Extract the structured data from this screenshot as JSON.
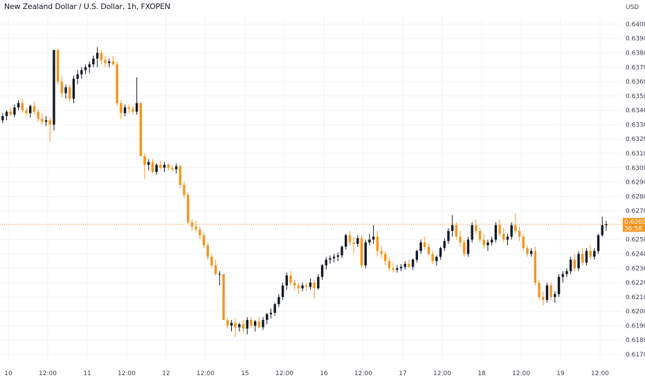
{
  "chart_data": {
    "type": "candlestick",
    "title": "New Zealand Dollar / U.S. Dollar, 1h, FXOPEN",
    "y_unit": "USD",
    "ylim": [
      0.6165,
      0.6403
    ],
    "y_ticks": [
      "0.64000",
      "0.63900",
      "0.63800",
      "0.63700",
      "0.63600",
      "0.63500",
      "0.63400",
      "0.63300",
      "0.63200",
      "0.63100",
      "0.63000",
      "0.62900",
      "0.62800",
      "0.62700",
      "0.62600",
      "0.62500",
      "0.62400",
      "0.62300",
      "0.62200",
      "0.62100",
      "0.62000",
      "0.61900",
      "0.61800",
      "0.61700"
    ],
    "x_ticks": [
      "10",
      "12:00",
      "11",
      "12:00",
      "12",
      "12:00",
      "15",
      "12:00",
      "16",
      "12:00",
      "17",
      "12:00",
      "18",
      "12:00",
      "19",
      "12:00"
    ],
    "current_price": "0.62607",
    "countdown": "36:58",
    "colors": {
      "up": "#131722",
      "down": "#f7931a",
      "grid": "#f0f3fa",
      "price_line": "#f7931a"
    },
    "candles": [
      [
        0.6333,
        0.6338,
        0.6331,
        0.6336
      ],
      [
        0.6336,
        0.634,
        0.6333,
        0.6339
      ],
      [
        0.6339,
        0.6342,
        0.6336,
        0.6337
      ],
      [
        0.6337,
        0.6344,
        0.6335,
        0.6342
      ],
      [
        0.6342,
        0.6347,
        0.634,
        0.6345
      ],
      [
        0.6345,
        0.6348,
        0.6338,
        0.634
      ],
      [
        0.634,
        0.6342,
        0.6336,
        0.6338
      ],
      [
        0.6338,
        0.6344,
        0.6335,
        0.6343
      ],
      [
        0.6343,
        0.6346,
        0.6337,
        0.6339
      ],
      [
        0.6339,
        0.6341,
        0.6332,
        0.6334
      ],
      [
        0.6334,
        0.6338,
        0.633,
        0.6332
      ],
      [
        0.6332,
        0.6336,
        0.6329,
        0.6333
      ],
      [
        0.6333,
        0.6335,
        0.6318,
        0.633
      ],
      [
        0.633,
        0.6382,
        0.6326,
        0.6382
      ],
      [
        0.6382,
        0.6383,
        0.6358,
        0.636
      ],
      [
        0.636,
        0.6364,
        0.6349,
        0.6352
      ],
      [
        0.6352,
        0.6358,
        0.6348,
        0.6356
      ],
      [
        0.6356,
        0.6358,
        0.6346,
        0.6348
      ],
      [
        0.6348,
        0.6364,
        0.6345,
        0.6362
      ],
      [
        0.6362,
        0.6368,
        0.6358,
        0.6365
      ],
      [
        0.6365,
        0.637,
        0.6362,
        0.6368
      ],
      [
        0.6368,
        0.6372,
        0.6365,
        0.637
      ],
      [
        0.637,
        0.6374,
        0.6366,
        0.6372
      ],
      [
        0.6372,
        0.6378,
        0.637,
        0.6376
      ],
      [
        0.6376,
        0.6384,
        0.637,
        0.638
      ],
      [
        0.638,
        0.6382,
        0.6372,
        0.6375
      ],
      [
        0.6375,
        0.6378,
        0.637,
        0.6373
      ],
      [
        0.6373,
        0.6376,
        0.637,
        0.6374
      ],
      [
        0.6374,
        0.6378,
        0.6371,
        0.6372
      ],
      [
        0.6372,
        0.6374,
        0.6343,
        0.6345
      ],
      [
        0.6345,
        0.6347,
        0.6334,
        0.6338
      ],
      [
        0.6338,
        0.6344,
        0.6336,
        0.6342
      ],
      [
        0.6342,
        0.6344,
        0.6338,
        0.6341
      ],
      [
        0.6341,
        0.6343,
        0.6337,
        0.6339
      ],
      [
        0.6339,
        0.6363,
        0.6337,
        0.6345
      ],
      [
        0.6345,
        0.6346,
        0.6308,
        0.6308
      ],
      [
        0.6308,
        0.631,
        0.6292,
        0.6302
      ],
      [
        0.6302,
        0.6306,
        0.6298,
        0.6304
      ],
      [
        0.6304,
        0.6306,
        0.6296,
        0.6297
      ],
      [
        0.6297,
        0.6303,
        0.6295,
        0.6302
      ],
      [
        0.6302,
        0.6305,
        0.6299,
        0.63
      ],
      [
        0.63,
        0.6304,
        0.6297,
        0.6302
      ],
      [
        0.6302,
        0.6303,
        0.6298,
        0.63
      ],
      [
        0.63,
        0.6302,
        0.6297,
        0.6299
      ],
      [
        0.6299,
        0.6303,
        0.6296,
        0.6301
      ],
      [
        0.6301,
        0.6302,
        0.6286,
        0.6288
      ],
      [
        0.6288,
        0.629,
        0.6279,
        0.6281
      ],
      [
        0.6281,
        0.6283,
        0.6261,
        0.6262
      ],
      [
        0.6262,
        0.6264,
        0.6256,
        0.6259
      ],
      [
        0.6259,
        0.6263,
        0.6255,
        0.6257
      ],
      [
        0.6257,
        0.6259,
        0.625,
        0.6253
      ],
      [
        0.6253,
        0.6255,
        0.6244,
        0.6246
      ],
      [
        0.6246,
        0.6248,
        0.6236,
        0.6238
      ],
      [
        0.6238,
        0.624,
        0.623,
        0.6232
      ],
      [
        0.6232,
        0.6236,
        0.6225,
        0.6226
      ],
      [
        0.6226,
        0.6228,
        0.6218,
        0.6226
      ],
      [
        0.6226,
        0.6226,
        0.6194,
        0.6194
      ],
      [
        0.6194,
        0.6196,
        0.6188,
        0.619
      ],
      [
        0.619,
        0.6194,
        0.6186,
        0.6192
      ],
      [
        0.6192,
        0.6195,
        0.6182,
        0.6189
      ],
      [
        0.6189,
        0.6192,
        0.6186,
        0.6191
      ],
      [
        0.6191,
        0.6194,
        0.6185,
        0.6188
      ],
      [
        0.6188,
        0.6196,
        0.6184,
        0.6194
      ],
      [
        0.6194,
        0.6196,
        0.6188,
        0.619
      ],
      [
        0.619,
        0.6194,
        0.6186,
        0.6193
      ],
      [
        0.6193,
        0.6196,
        0.6188,
        0.6189
      ],
      [
        0.6189,
        0.6196,
        0.6187,
        0.6194
      ],
      [
        0.6194,
        0.6199,
        0.6191,
        0.6198
      ],
      [
        0.6198,
        0.6202,
        0.6195,
        0.6199
      ],
      [
        0.6199,
        0.6206,
        0.6197,
        0.6205
      ],
      [
        0.6205,
        0.6212,
        0.6203,
        0.621
      ],
      [
        0.621,
        0.622,
        0.6208,
        0.6218
      ],
      [
        0.6218,
        0.6227,
        0.6215,
        0.6225
      ],
      [
        0.6225,
        0.6228,
        0.6218,
        0.622
      ],
      [
        0.622,
        0.6222,
        0.6215,
        0.6218
      ],
      [
        0.6218,
        0.622,
        0.6212,
        0.6216
      ],
      [
        0.6216,
        0.622,
        0.6214,
        0.6218
      ],
      [
        0.6218,
        0.622,
        0.6214,
        0.6217
      ],
      [
        0.6217,
        0.6223,
        0.6215,
        0.622
      ],
      [
        0.622,
        0.6222,
        0.6209,
        0.6216
      ],
      [
        0.6216,
        0.6226,
        0.6215,
        0.6224
      ],
      [
        0.6224,
        0.6233,
        0.6222,
        0.6232
      ],
      [
        0.6232,
        0.6238,
        0.6229,
        0.6236
      ],
      [
        0.6236,
        0.6239,
        0.6233,
        0.6237
      ],
      [
        0.6237,
        0.624,
        0.6234,
        0.6238
      ],
      [
        0.6238,
        0.6241,
        0.6235,
        0.6239
      ],
      [
        0.6239,
        0.6246,
        0.6237,
        0.6245
      ],
      [
        0.6245,
        0.6254,
        0.6243,
        0.6253
      ],
      [
        0.6253,
        0.6256,
        0.6246,
        0.6248
      ],
      [
        0.6248,
        0.6252,
        0.624,
        0.6247
      ],
      [
        0.6247,
        0.6253,
        0.6245,
        0.6251
      ],
      [
        0.6251,
        0.6253,
        0.623,
        0.6232
      ],
      [
        0.6232,
        0.625,
        0.623,
        0.6248
      ],
      [
        0.6248,
        0.6254,
        0.6246,
        0.625
      ],
      [
        0.625,
        0.626,
        0.6247,
        0.6252
      ],
      [
        0.6252,
        0.6256,
        0.6238,
        0.6242
      ],
      [
        0.6242,
        0.6246,
        0.6237,
        0.624
      ],
      [
        0.624,
        0.6242,
        0.6232,
        0.6235
      ],
      [
        0.6235,
        0.6237,
        0.6228,
        0.623
      ],
      [
        0.623,
        0.6234,
        0.6227,
        0.6229
      ],
      [
        0.6229,
        0.6232,
        0.6227,
        0.623
      ],
      [
        0.623,
        0.6233,
        0.6228,
        0.6231
      ],
      [
        0.6231,
        0.6235,
        0.6229,
        0.6233
      ],
      [
        0.6233,
        0.6236,
        0.623,
        0.6231
      ],
      [
        0.6231,
        0.6237,
        0.6229,
        0.6236
      ],
      [
        0.6236,
        0.6243,
        0.6234,
        0.6242
      ],
      [
        0.6242,
        0.625,
        0.624,
        0.6248
      ],
      [
        0.6248,
        0.6252,
        0.6243,
        0.6245
      ],
      [
        0.6245,
        0.6247,
        0.6239,
        0.624
      ],
      [
        0.624,
        0.6242,
        0.6233,
        0.6235
      ],
      [
        0.6235,
        0.6239,
        0.6232,
        0.6238
      ],
      [
        0.6238,
        0.6245,
        0.6236,
        0.6244
      ],
      [
        0.6244,
        0.6251,
        0.6242,
        0.6249
      ],
      [
        0.6249,
        0.6258,
        0.6247,
        0.6256
      ],
      [
        0.6256,
        0.6267,
        0.6252,
        0.626
      ],
      [
        0.626,
        0.6262,
        0.625,
        0.6252
      ],
      [
        0.6252,
        0.6256,
        0.6245,
        0.6248
      ],
      [
        0.6248,
        0.625,
        0.6238,
        0.624
      ],
      [
        0.624,
        0.6252,
        0.6238,
        0.625
      ],
      [
        0.625,
        0.6262,
        0.6248,
        0.626
      ],
      [
        0.626,
        0.6264,
        0.6254,
        0.6256
      ],
      [
        0.6256,
        0.6258,
        0.6248,
        0.625
      ],
      [
        0.625,
        0.6254,
        0.6244,
        0.6246
      ],
      [
        0.6246,
        0.625,
        0.6242,
        0.6248
      ],
      [
        0.6248,
        0.6252,
        0.6246,
        0.625
      ],
      [
        0.625,
        0.6262,
        0.6248,
        0.626
      ],
      [
        0.626,
        0.6264,
        0.6252,
        0.6254
      ],
      [
        0.6254,
        0.6258,
        0.6248,
        0.625
      ],
      [
        0.625,
        0.6254,
        0.6246,
        0.6252
      ],
      [
        0.6252,
        0.6262,
        0.625,
        0.626
      ],
      [
        0.626,
        0.6268,
        0.6254,
        0.6256
      ],
      [
        0.6256,
        0.6259,
        0.6249,
        0.6252
      ],
      [
        0.6252,
        0.6254,
        0.6242,
        0.6244
      ],
      [
        0.6244,
        0.6246,
        0.6238,
        0.624
      ],
      [
        0.624,
        0.6244,
        0.6238,
        0.6242
      ],
      [
        0.6242,
        0.6245,
        0.6218,
        0.622
      ],
      [
        0.622,
        0.6222,
        0.6208,
        0.621
      ],
      [
        0.621,
        0.6214,
        0.6204,
        0.6208
      ],
      [
        0.6208,
        0.622,
        0.6206,
        0.6218
      ],
      [
        0.6218,
        0.622,
        0.6208,
        0.621
      ],
      [
        0.621,
        0.6214,
        0.6206,
        0.6212
      ],
      [
        0.6212,
        0.6226,
        0.621,
        0.6224
      ],
      [
        0.6224,
        0.6228,
        0.622,
        0.6226
      ],
      [
        0.6226,
        0.623,
        0.6224,
        0.6228
      ],
      [
        0.6228,
        0.6238,
        0.6226,
        0.6236
      ],
      [
        0.6236,
        0.624,
        0.6228,
        0.623
      ],
      [
        0.623,
        0.6242,
        0.6228,
        0.624
      ],
      [
        0.624,
        0.6244,
        0.6232,
        0.6234
      ],
      [
        0.6234,
        0.6244,
        0.6232,
        0.6242
      ],
      [
        0.6242,
        0.6246,
        0.6236,
        0.6238
      ],
      [
        0.6238,
        0.6244,
        0.6236,
        0.6242
      ],
      [
        0.6242,
        0.6254,
        0.624,
        0.6253
      ],
      [
        0.6253,
        0.6266,
        0.6252,
        0.626
      ],
      [
        0.626,
        0.6263,
        0.6256,
        0.62607
      ]
    ]
  }
}
